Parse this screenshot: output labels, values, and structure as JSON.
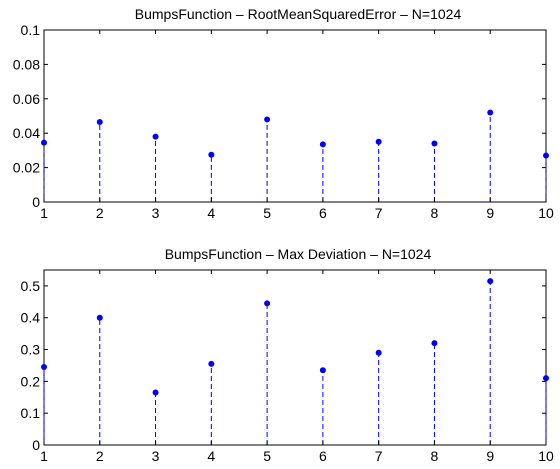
{
  "chart_data": [
    {
      "type": "stem",
      "title": "BumpsFunction – RootMeanSquaredError – N=1024",
      "xlabel": "",
      "ylabel": "",
      "x": [
        1,
        2,
        3,
        4,
        5,
        6,
        7,
        8,
        9,
        10
      ],
      "values": [
        0.0345,
        0.0465,
        0.038,
        0.0275,
        0.048,
        0.0335,
        0.035,
        0.034,
        0.052,
        0.027
      ],
      "xlim": [
        1,
        10
      ],
      "ylim": [
        0,
        0.1
      ],
      "xticks": [
        "1",
        "2",
        "3",
        "4",
        "5",
        "6",
        "7",
        "8",
        "9",
        "10"
      ],
      "yticks": [
        "0",
        "0.02",
        "0.04",
        "0.06",
        "0.08",
        "0.1"
      ],
      "ytick_values": [
        0,
        0.02,
        0.04,
        0.06,
        0.08,
        0.1
      ],
      "grid": false,
      "color": "#0000ff"
    },
    {
      "type": "stem",
      "title": "BumpsFunction – Max Deviation – N=1024",
      "xlabel": "",
      "ylabel": "",
      "x": [
        1,
        2,
        3,
        4,
        5,
        6,
        7,
        8,
        9,
        10
      ],
      "values": [
        0.245,
        0.4,
        0.165,
        0.255,
        0.445,
        0.235,
        0.29,
        0.32,
        0.515,
        0.21
      ],
      "xlim": [
        1,
        10
      ],
      "ylim": [
        0,
        0.55
      ],
      "xticks": [
        "1",
        "2",
        "3",
        "4",
        "5",
        "6",
        "7",
        "8",
        "9",
        "10"
      ],
      "yticks": [
        "0",
        "0.1",
        "0.2",
        "0.3",
        "0.4",
        "0.5"
      ],
      "ytick_values": [
        0,
        0.1,
        0.2,
        0.3,
        0.4,
        0.5
      ],
      "grid": false,
      "color": "#0000ff"
    }
  ]
}
